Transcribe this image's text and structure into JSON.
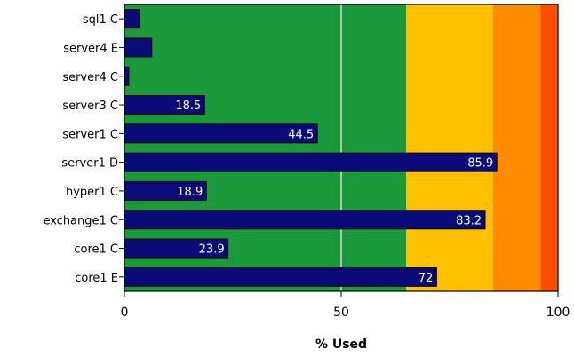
{
  "chart_data": {
    "type": "bar",
    "orientation": "horizontal",
    "categories": [
      "sql1 C",
      "server4 E",
      "server4 C",
      "server3 C",
      "server1 C",
      "server1 D",
      "hyper1 C",
      "exchange1 C",
      "core1 C",
      "core1 E"
    ],
    "values": [
      3.5,
      6.3,
      1.0,
      18.5,
      44.5,
      85.9,
      18.9,
      83.2,
      23.9,
      72
    ],
    "value_labels": [
      "",
      "",
      "",
      "18.5",
      "44.5",
      "85.9",
      "18.9",
      "83.2",
      "23.9",
      "72"
    ],
    "xlabel": "% Used",
    "xlim": [
      0,
      100
    ],
    "x_ticks": [
      "0",
      "50",
      "100"
    ],
    "x_tick_values": [
      0,
      50,
      100
    ],
    "gridline_at": 50,
    "bands": [
      {
        "from": 0,
        "to": 65,
        "color": "#1a9a3a"
      },
      {
        "from": 65,
        "to": 85,
        "color": "#ffc000"
      },
      {
        "from": 85,
        "to": 96,
        "color": "#ff8c00"
      },
      {
        "from": 96,
        "to": 100,
        "color": "#ff4e00"
      }
    ],
    "bar_color": "#0a0a78",
    "bar_label_color": "#ffffff"
  }
}
